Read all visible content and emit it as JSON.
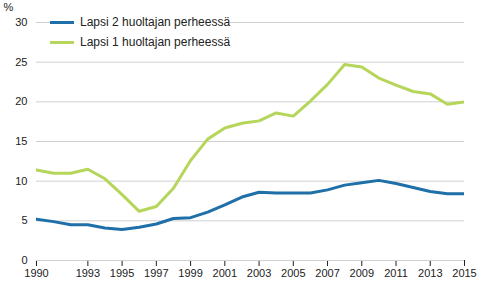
{
  "chart_data": {
    "type": "line",
    "y_label": "%",
    "x": [
      1990,
      1991,
      1992,
      1993,
      1994,
      1995,
      1996,
      1997,
      1998,
      1999,
      2000,
      2001,
      2002,
      2003,
      2004,
      2005,
      2006,
      2007,
      2008,
      2009,
      2010,
      2011,
      2012,
      2013,
      2014,
      2015
    ],
    "series": [
      {
        "name": "Lapsi 2 huoltajan perheessä",
        "color": "#1f6fa8",
        "values": [
          5.2,
          4.9,
          4.5,
          4.5,
          4.1,
          3.9,
          4.2,
          4.6,
          5.3,
          5.4,
          6.1,
          7.0,
          8.0,
          8.6,
          8.5,
          8.5,
          8.5,
          8.9,
          9.5,
          9.8,
          10.1,
          9.7,
          9.2,
          8.7,
          8.4,
          8.4
        ]
      },
      {
        "name": "Lapsi 1 huoltajan perheessä",
        "color": "#b5d65a",
        "values": [
          11.4,
          11.0,
          11.0,
          11.5,
          10.3,
          8.3,
          6.2,
          6.8,
          9.1,
          12.6,
          15.3,
          16.7,
          17.3,
          17.6,
          18.6,
          18.2,
          20.1,
          22.2,
          24.7,
          24.4,
          23.0,
          22.1,
          21.3,
          21.0,
          19.7,
          20.0
        ]
      }
    ],
    "xlim": [
      1990,
      2015
    ],
    "xticks": [
      1990,
      1993,
      1995,
      1997,
      1999,
      2001,
      2003,
      2005,
      2007,
      2009,
      2011,
      2013,
      2015
    ],
    "ylim": [
      0,
      30
    ],
    "yticks": [
      0,
      5,
      10,
      15,
      20,
      25,
      30
    ],
    "grid": true,
    "legend": "upper left"
  }
}
